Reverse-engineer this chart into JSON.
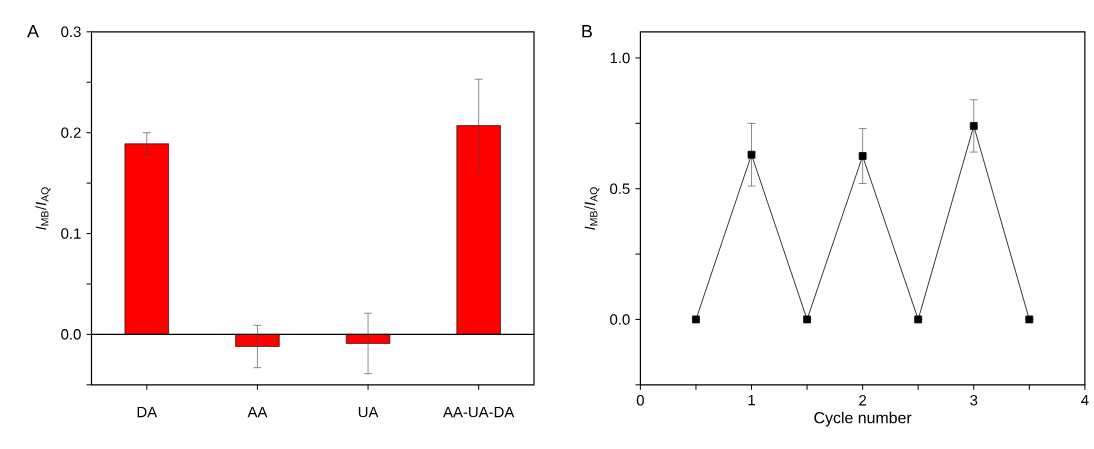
{
  "chart_data": [
    {
      "type": "bar",
      "title": "A",
      "ylabel": "*I*$_{MB}$/*I*$_{AQ}$",
      "categories": [
        "DA",
        "AA",
        "UA",
        "AA-UA-DA"
      ],
      "values": [
        0.189,
        -0.012,
        -0.009,
        0.207
      ],
      "errors": [
        0.011,
        0.021,
        0.03,
        0.046
      ],
      "color": "#ff0000",
      "ylim": [
        -0.05,
        0.3
      ],
      "yticks": [
        {
          "value": -0.05,
          "label": null
        },
        {
          "value": 0,
          "label": "0.0"
        },
        {
          "value": 0.05,
          "label": null
        },
        {
          "value": 0.1,
          "label": "0.1"
        },
        {
          "value": 0.15,
          "label": null
        },
        {
          "value": 0.2,
          "label": "0.2"
        },
        {
          "value": 0.25,
          "label": null
        },
        {
          "value": 0.3,
          "label": "0.3"
        }
      ],
      "ref_lines": [
        {
          "axis": "y",
          "value": 0,
          "color": "#000000"
        }
      ],
      "grid": false
    },
    {
      "type": "line",
      "title": "B",
      "xlabel": "Cycle number",
      "ylabel": "*I*$_{MB}$/*I*$_{AQ}$",
      "x": [
        0.5,
        1,
        1.5,
        2,
        2.5,
        3,
        3.5
      ],
      "values": [
        0,
        0.63,
        0,
        0.625,
        0,
        0.74,
        0
      ],
      "errors": [
        null,
        0.12,
        null,
        0.105,
        null,
        0.1,
        null
      ],
      "color": "#000000",
      "marker": "square",
      "line_style": "solid",
      "xlim": [
        0,
        4
      ],
      "xticks": [
        0,
        {
          "value": 0.5,
          "label": null
        },
        1,
        {
          "value": 1.5,
          "label": null
        },
        2,
        {
          "value": 2.5,
          "label": null
        },
        3,
        {
          "value": 3.5,
          "label": null
        },
        4
      ],
      "ylim": [
        -0.25,
        1.1
      ],
      "yticks": [
        {
          "value": -0.25,
          "label": null
        },
        {
          "value": 0,
          "label": "0.0"
        },
        {
          "value": 0.25,
          "label": null
        },
        {
          "value": 0.5,
          "label": "0.5"
        },
        {
          "value": 0.75,
          "label": null
        },
        {
          "value": 1,
          "label": "1.0"
        }
      ],
      "grid": false
    }
  ]
}
